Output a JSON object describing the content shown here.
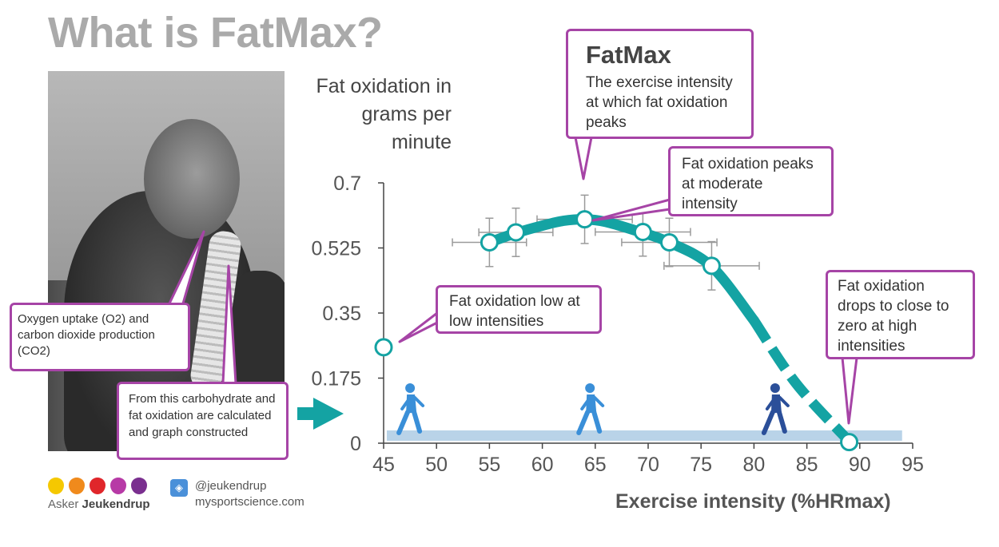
{
  "title": "What is FatMax?",
  "photo_label": "Athlete wearing gas analysis mask",
  "callouts": {
    "oxygen": "Oxygen uptake (O2) and carbon dioxide production (CO2)",
    "carb": "From this carbohydrate and fat oxidation are calculated and graph constructed",
    "fatmax_title": "FatMax",
    "fatmax_body": "The exercise intensity at which fat oxidation peaks",
    "peaks": "Fat oxidation peaks at moderate intensity",
    "low": "Fat oxidation low at low intensities",
    "drops": "Fat oxidation drops to close to zero at high intensities"
  },
  "footer": {
    "brand_first": "Asker",
    "brand_last": "Jeukendrup",
    "twitter_handle": "@jeukendrup",
    "website": "mysportscience.com",
    "dot_colors": [
      "#f5c800",
      "#f08a1c",
      "#e0262b",
      "#b73aa6",
      "#7a2f8f"
    ]
  },
  "colors": {
    "curve": "#14a3a3",
    "callout_border": "#a644a6",
    "band": "#b9d3e8",
    "runner_light": "#3a8fd8",
    "runner_dark": "#2b4f99"
  },
  "chart_data": {
    "type": "line",
    "title": "",
    "ylabel": "Fat oxidation in grams per minute",
    "xlabel": "Exercise intensity (%HRmax)",
    "xlim": [
      45,
      95
    ],
    "ylim": [
      0,
      0.7
    ],
    "xticks": [
      45,
      50,
      55,
      60,
      65,
      70,
      75,
      80,
      85,
      90,
      95
    ],
    "yticks": [
      0,
      0.175,
      0.35,
      0.525,
      0.7
    ],
    "ytick_labels": [
      "0",
      "0.175",
      "0.35",
      "0.525",
      "0.7"
    ],
    "curve": {
      "x": [
        55,
        57.5,
        60,
        62,
        64,
        66,
        69,
        72,
        76,
        80,
        84,
        89
      ],
      "y": [
        0.54,
        0.565,
        0.585,
        0.598,
        0.602,
        0.595,
        0.57,
        0.54,
        0.475,
        0.33,
        0.16,
        0.005
      ]
    },
    "points": [
      {
        "x": 45,
        "y": 0.258,
        "xerr": 0,
        "yerr": 0
      },
      {
        "x": 55,
        "y": 0.54,
        "xerr": 3.5,
        "yerr": 0.065
      },
      {
        "x": 57.5,
        "y": 0.567,
        "xerr": 3.5,
        "yerr": 0.065
      },
      {
        "x": 64,
        "y": 0.602,
        "xerr": 4.5,
        "yerr": 0.065
      },
      {
        "x": 69.5,
        "y": 0.568,
        "xerr": 4.5,
        "yerr": 0.065
      },
      {
        "x": 72,
        "y": 0.54,
        "xerr": 4.5,
        "yerr": 0.065
      },
      {
        "x": 76,
        "y": 0.477,
        "xerr": 4.5,
        "yerr": 0.065
      },
      {
        "x": 89,
        "y": 0.003,
        "xerr": 0,
        "yerr": 0
      }
    ],
    "runner_positions": [
      47.5,
      64.5,
      82
    ]
  }
}
